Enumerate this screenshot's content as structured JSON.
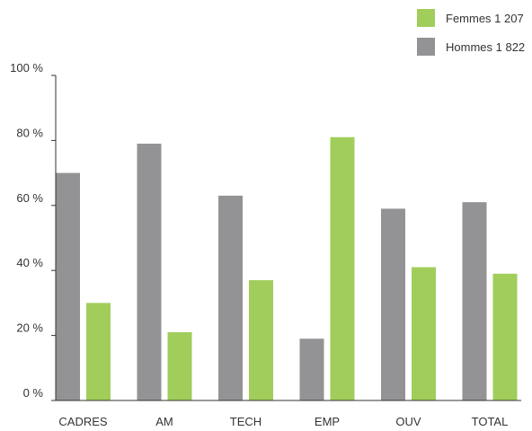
{
  "chart_data": {
    "type": "bar",
    "title": "",
    "xlabel": "",
    "ylabel": "",
    "categories": [
      "CADRES",
      "AM",
      "TECH",
      "EMP",
      "OUV",
      "TOTAL"
    ],
    "series": [
      {
        "name": "Hommes 1 822",
        "color": "#939396",
        "values": [
          70,
          79,
          63,
          19,
          59,
          61
        ]
      },
      {
        "name": "Femmes 1 207",
        "color": "#a1cd5b",
        "values": [
          30,
          21,
          37,
          81,
          41,
          39
        ]
      }
    ],
    "ylim": [
      0,
      100
    ],
    "yticks": [
      0,
      20,
      40,
      60,
      80,
      100
    ],
    "ytick_labels": [
      "0 %",
      "20 %",
      "40 %",
      "60 %",
      "80 %",
      "100 %"
    ],
    "grid": false,
    "legend": {
      "placement": "top-right",
      "entries": [
        "Femmes 1 207",
        "Hommes 1 822"
      ]
    }
  }
}
